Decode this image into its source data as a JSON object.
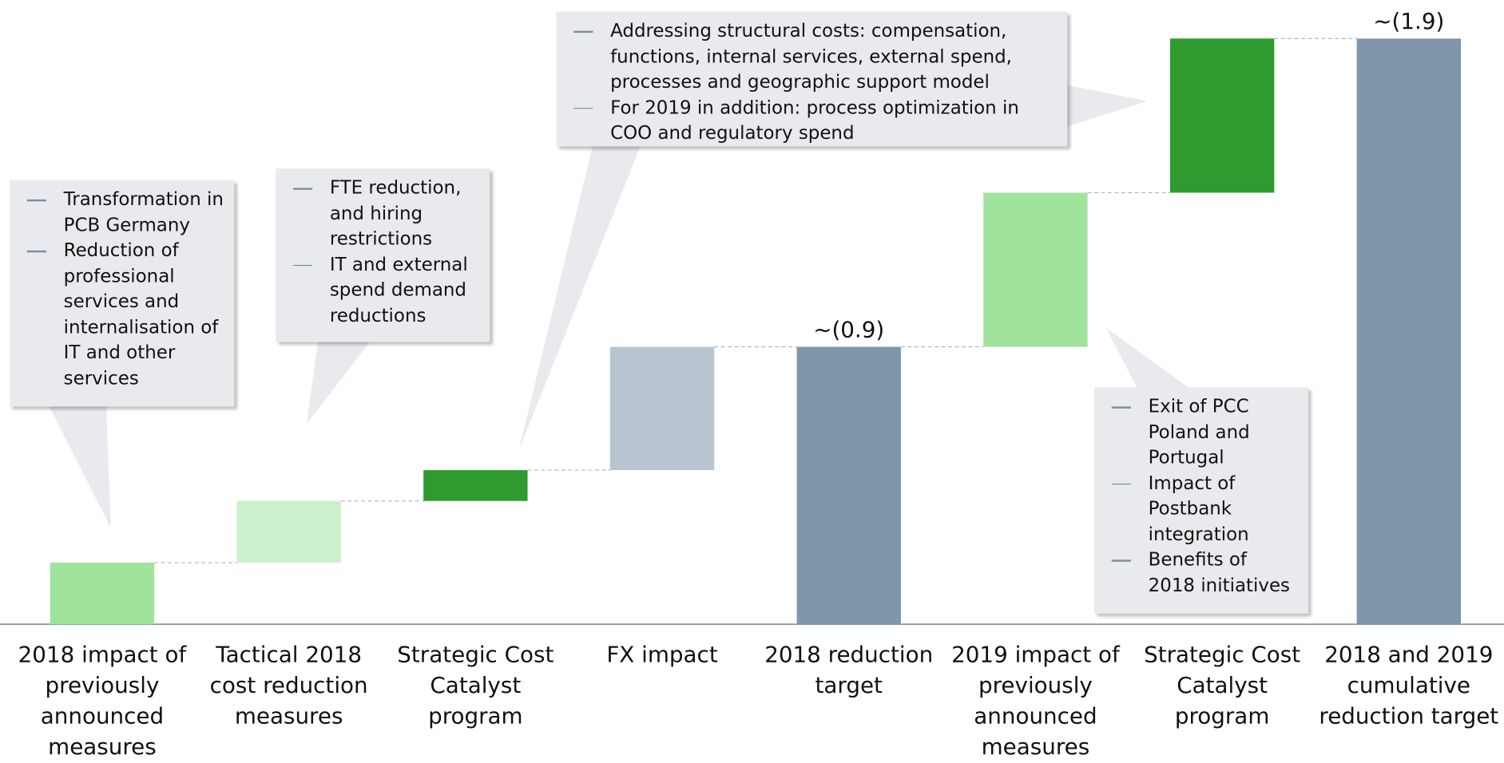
{
  "chart_data": {
    "type": "waterfall",
    "categories": [
      "2018 impact of previously announced measures",
      "Tactical 2018 cost reduction measures",
      "Strategic Cost Catalyst program",
      "FX impact",
      "2018 reduction target",
      "2019 impact of previously announced measures",
      "Strategic Cost Catalyst program",
      "2018 and 2019 cumulative reduction target"
    ],
    "values": [
      0.2,
      0.2,
      0.1,
      0.4,
      0.9,
      0.5,
      0.5,
      1.9
    ],
    "value_labels": [
      null,
      null,
      null,
      null,
      "~(0.9)",
      null,
      null,
      "~(1.9)"
    ],
    "bar_types": [
      "delta",
      "delta",
      "delta",
      "delta",
      "total",
      "delta",
      "delta",
      "total"
    ],
    "colors": [
      "#a0e39c",
      "#cdf0cc",
      "#2e9a30",
      "#b8c4cf",
      "#8096aa",
      "#a0e39c",
      "#2e9a30",
      "#8096aa"
    ],
    "annotations": [
      {
        "items": [
          "Transformation in PCB Germany",
          "Reduction of professional services and internalisation of IT and other services"
        ]
      },
      {
        "items": [
          "FTE reduction, and hiring restrictions",
          "IT and external spend demand reductions"
        ]
      },
      {
        "items": [
          "Addressing structural costs: compensation, functions, internal services, external spend, processes and geographic support model",
          "For 2019 in addition: process optimization in COO and regulatory spend"
        ]
      },
      {
        "items": [
          "Exit of PCC Poland and Portugal",
          "Impact of Postbank integration",
          "Benefits of 2018 initiatives"
        ]
      }
    ]
  }
}
